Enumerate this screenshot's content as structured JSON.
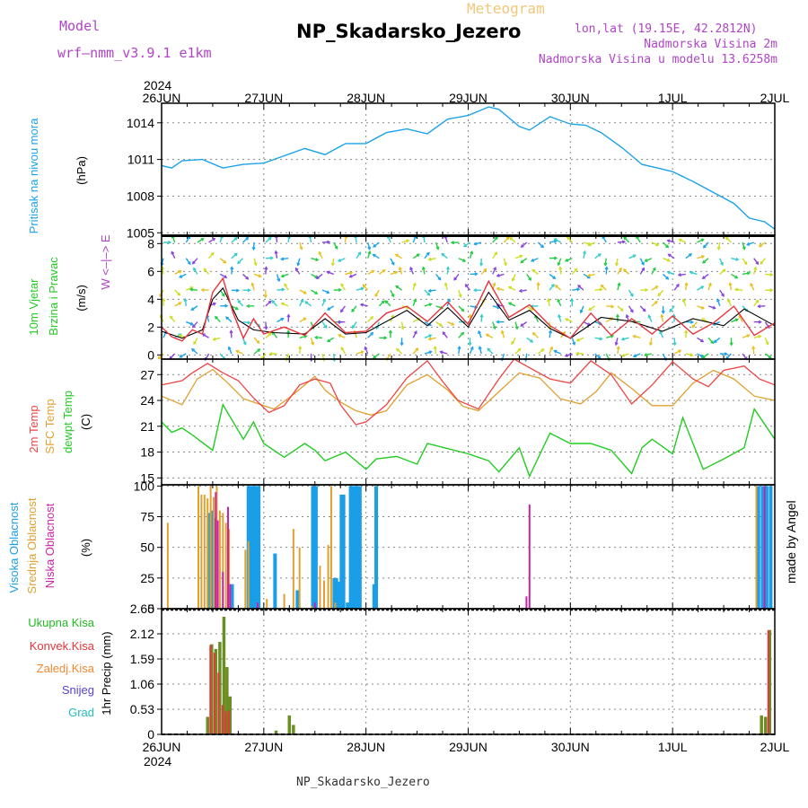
{
  "header": {
    "model_label": "Model",
    "model_name": "wrf–nmm_v3.9.1 e1km",
    "chart_kind": "Meteogram",
    "station": "NP_Skadarsko_Jezero",
    "coords": "lon,lat (19.15E, 42.2812N)",
    "elev": "Nadmorska Visina 2m",
    "elev_model": "Nadmorska Visina u modelu 13.6258m",
    "watermark": "made by Angel",
    "footer": "NP_Skadarsko_Jezero",
    "year": "2024"
  },
  "colors": {
    "pressure": "#1aa3e8",
    "wind_speed": "#e8343c",
    "gust": "#000000",
    "temp2m": "#ee4444",
    "sfc": "#e0a030",
    "dew": "#22cc22",
    "cloud_high": "#1a9ee8",
    "cloud_mid": "#e0a030",
    "cloud_low": "#cc22aa",
    "precip_total": "#6b8e23",
    "precip_conv": "#e8343c"
  },
  "chart_data": [
    {
      "type": "line",
      "name": "pressure",
      "ylabel": "(hPa)",
      "side_labels": [
        "Pritisak na nivou mora"
      ],
      "yticks": [
        1005,
        1008,
        1011,
        1014
      ],
      "ylim": [
        1004.8,
        1015.6
      ],
      "x_days": [
        0,
        0.1,
        0.2,
        0.4,
        0.6,
        0.8,
        1.0,
        1.2,
        1.4,
        1.6,
        1.8,
        2.0,
        2.2,
        2.4,
        2.6,
        2.8,
        3.0,
        3.2,
        3.3,
        3.5,
        3.6,
        3.8,
        4.0,
        4.15,
        4.3,
        4.5,
        4.7,
        4.85,
        5.0,
        5.2,
        5.4,
        5.6,
        5.75,
        5.9,
        6.0
      ],
      "values": [
        1010.5,
        1010.3,
        1010.9,
        1011.0,
        1010.3,
        1010.6,
        1010.7,
        1011.3,
        1011.9,
        1011.4,
        1012.3,
        1012.3,
        1013.2,
        1013.5,
        1013.1,
        1014.3,
        1014.6,
        1015.3,
        1015.1,
        1013.7,
        1013.4,
        1014.5,
        1013.9,
        1013.8,
        1013.2,
        1012.0,
        1010.6,
        1010.3,
        1010.0,
        1009.2,
        1008.3,
        1007.4,
        1006.2,
        1005.9,
        1005.3
      ]
    },
    {
      "type": "line",
      "name": "wind",
      "ylabel": "(m/s)",
      "side_labels": [
        "10m Vjetar",
        "Brzina i Pravac"
      ],
      "compass": "W  <–|–>  E",
      "yticks": [
        0,
        2,
        4,
        6,
        8
      ],
      "ylim": [
        -0.3,
        8.6
      ],
      "series": [
        {
          "name": "10m Vjetar",
          "x_days": [
            0,
            0.1,
            0.2,
            0.3,
            0.4,
            0.5,
            0.6,
            0.7,
            0.8,
            0.9,
            1.0,
            1.2,
            1.4,
            1.6,
            1.8,
            2.0,
            2.2,
            2.4,
            2.6,
            2.8,
            3.0,
            3.2,
            3.4,
            3.6,
            3.8,
            4.0,
            4.2,
            4.4,
            4.6,
            4.8,
            5.0,
            5.2,
            5.4,
            5.6,
            5.8,
            6.0
          ],
          "values": [
            2.0,
            1.3,
            1.0,
            1.8,
            1.5,
            4.5,
            5.5,
            3.0,
            1.2,
            2.6,
            1.5,
            2.0,
            1.4,
            3.0,
            1.6,
            1.7,
            3.0,
            3.5,
            2.4,
            3.8,
            2.2,
            5.3,
            2.7,
            3.6,
            2.1,
            1.2,
            3.0,
            1.4,
            2.6,
            1.5,
            2.8,
            1.5,
            2.3,
            3.5,
            1.4,
            2.3
          ]
        },
        {
          "name": "gust",
          "x_days": [
            0,
            0.2,
            0.4,
            0.5,
            0.6,
            0.75,
            0.9,
            1.1,
            1.4,
            1.6,
            1.8,
            2.0,
            2.4,
            2.6,
            2.8,
            3.0,
            3.2,
            3.4,
            3.6,
            3.8,
            4.0,
            4.3,
            4.6,
            4.9,
            5.2,
            5.5,
            5.7,
            6.0
          ],
          "values": [
            1.7,
            1.2,
            1.8,
            4.0,
            4.8,
            2.5,
            1.8,
            1.6,
            1.5,
            2.6,
            1.5,
            1.6,
            3.2,
            2.1,
            3.4,
            2.0,
            4.5,
            2.5,
            3.2,
            1.9,
            1.2,
            2.7,
            2.4,
            1.7,
            2.6,
            2.1,
            3.3,
            2.1
          ]
        }
      ]
    },
    {
      "type": "line",
      "name": "temperature",
      "ylabel": "(C)",
      "side_labels": [
        "2m Temp",
        "SFC Temp",
        "dewpt Temp"
      ],
      "yticks": [
        15,
        18,
        21,
        24,
        27
      ],
      "ylim": [
        14.2,
        28.8
      ],
      "series": [
        {
          "name": "2m Temp",
          "x_days": [
            0,
            0.2,
            0.3,
            0.45,
            0.6,
            0.75,
            0.9,
            1.05,
            1.2,
            1.35,
            1.5,
            1.65,
            1.75,
            1.9,
            2.0,
            2.2,
            2.4,
            2.6,
            2.75,
            2.9,
            3.1,
            3.3,
            3.45,
            3.6,
            3.8,
            4.0,
            4.2,
            4.4,
            4.6,
            4.8,
            5.0,
            5.2,
            5.35,
            5.5,
            5.7,
            5.85,
            6.0
          ],
          "values": [
            25.8,
            26.3,
            27.2,
            28.3,
            27.2,
            26.3,
            24.3,
            22.6,
            23.4,
            25.8,
            26.5,
            26.0,
            23.5,
            21.2,
            21.5,
            23.5,
            26.6,
            28.6,
            26.2,
            24.0,
            23.0,
            26.5,
            28.8,
            27.8,
            26.5,
            26.0,
            28.6,
            27.0,
            23.6,
            25.8,
            28.5,
            26.5,
            25.6,
            27.5,
            28.0,
            26.5,
            25.8
          ]
        },
        {
          "name": "SFC Temp",
          "x_days": [
            0,
            0.2,
            0.35,
            0.5,
            0.65,
            0.8,
            0.95,
            1.1,
            1.3,
            1.5,
            1.6,
            1.75,
            1.9,
            2.05,
            2.2,
            2.4,
            2.6,
            2.8,
            2.95,
            3.1,
            3.3,
            3.5,
            3.7,
            3.9,
            4.1,
            4.25,
            4.4,
            4.6,
            4.8,
            5.0,
            5.2,
            5.4,
            5.6,
            5.8,
            6.0
          ],
          "values": [
            24.5,
            23.5,
            26.5,
            27.6,
            26.0,
            24.2,
            23.6,
            23.0,
            24.8,
            26.8,
            25.2,
            23.8,
            22.8,
            22.3,
            22.8,
            25.8,
            27.0,
            25.2,
            23.3,
            22.8,
            25.0,
            27.2,
            26.6,
            24.2,
            23.6,
            25.0,
            27.2,
            25.4,
            23.4,
            23.4,
            26.0,
            27.5,
            26.5,
            24.5,
            24.0
          ]
        },
        {
          "name": "dewpt Temp",
          "x_days": [
            0,
            0.1,
            0.2,
            0.3,
            0.5,
            0.6,
            0.8,
            0.9,
            1.0,
            1.2,
            1.4,
            1.5,
            1.6,
            1.8,
            2.0,
            2.1,
            2.3,
            2.5,
            2.6,
            2.8,
            3.0,
            3.2,
            3.3,
            3.5,
            3.6,
            3.8,
            4.0,
            4.2,
            4.4,
            4.6,
            4.7,
            4.8,
            5.0,
            5.1,
            5.3,
            5.5,
            5.7,
            5.8,
            6.0
          ],
          "values": [
            21.5,
            20.3,
            20.8,
            20.0,
            18.2,
            23.5,
            19.5,
            21.5,
            19.0,
            17.4,
            19.0,
            18.2,
            17.0,
            18.0,
            16.0,
            17.2,
            17.5,
            16.6,
            19.0,
            18.4,
            17.8,
            17.0,
            15.7,
            18.5,
            15.2,
            20.2,
            19.0,
            19.0,
            18.2,
            15.5,
            18.5,
            19.5,
            17.8,
            22.0,
            16.0,
            17.2,
            18.5,
            23.0,
            19.5
          ]
        }
      ]
    },
    {
      "type": "bar",
      "name": "cloud",
      "ylabel": "(%)",
      "side_labels": [
        "Visoka Oblacnost",
        "Srednja Oblacnost",
        "Niska Oblacnost"
      ],
      "yticks": [
        0,
        25,
        50,
        75,
        100
      ],
      "ylim": [
        0,
        101
      ],
      "series": [
        {
          "name": "Visoka Oblacnost",
          "x_days": [
            0.46,
            0.49,
            0.52,
            0.69,
            0.85,
            0.87,
            0.89,
            0.91,
            0.93,
            0.95,
            1.11,
            1.33,
            1.48,
            1.51,
            1.69,
            1.71,
            1.73,
            1.76,
            1.78,
            1.82,
            1.85,
            1.88,
            1.91,
            1.94,
            2.08,
            2.1,
            5.84,
            5.88,
            5.92,
            5.96
          ],
          "values": [
            78,
            80,
            74,
            20,
            100,
            100,
            100,
            100,
            100,
            100,
            45,
            15,
            100,
            100,
            25,
            25,
            22,
            93,
            93,
            5,
            100,
            100,
            100,
            100,
            20,
            100,
            100,
            100,
            100,
            100
          ]
        },
        {
          "name": "Srednja Oblacnost",
          "x_days": [
            0.06,
            0.36,
            0.39,
            0.42,
            0.45,
            0.48,
            0.51,
            0.54,
            0.57,
            0.6,
            0.63,
            0.66,
            0.82,
            0.85,
            1.03,
            1.2,
            1.29,
            1.35,
            1.47,
            1.55,
            1.59,
            1.63,
            1.66,
            1.7,
            5.82
          ],
          "values": [
            70,
            100,
            93,
            93,
            90,
            100,
            91,
            100,
            80,
            78,
            70,
            65,
            48,
            55,
            8,
            12,
            65,
            50,
            2,
            35,
            23,
            52,
            100,
            5,
            100
          ]
        },
        {
          "name": "Niska Oblacnost",
          "x_days": [
            0.53,
            0.55,
            0.6,
            0.65,
            0.67,
            0.94,
            1.5,
            3.57,
            3.6,
            5.9
          ],
          "values": [
            95,
            72,
            30,
            83,
            20,
            5,
            5,
            10,
            85,
            100
          ]
        }
      ]
    },
    {
      "type": "bar",
      "name": "precip",
      "ylabel": "1hr Precip (mm)",
      "side_labels": [
        "Ukupna Kisa",
        "Konvek.Kisa",
        "Zaledj.Kisa",
        "Snijeg",
        "Grad"
      ],
      "yticks": [
        0,
        0.53,
        1.06,
        1.59,
        2.12,
        2.65
      ],
      "ylim": [
        0,
        2.65
      ],
      "series": [
        {
          "name": "Ukupna Kisa",
          "x_days": [
            0.45,
            0.49,
            0.53,
            0.57,
            0.61,
            0.64,
            0.67,
            1.12,
            1.25,
            1.29,
            5.87,
            5.91,
            5.95
          ],
          "values": [
            0.37,
            1.9,
            1.8,
            1.95,
            2.48,
            1.42,
            0.8,
            0.08,
            0.4,
            0.2,
            0.4,
            0.37,
            2.2
          ]
        },
        {
          "name": "Konvek.Kisa",
          "x_days": [
            0.49,
            0.53,
            0.57,
            0.61,
            0.64,
            0.67,
            5.95
          ],
          "values": [
            1.88,
            1.72,
            1.3,
            0.62,
            0.48,
            0.5,
            2.2
          ]
        }
      ]
    }
  ],
  "x_axis": {
    "days": 6,
    "top_labels": [
      "26JUN",
      "27JUN",
      "28JUN",
      "29JUN",
      "30JUN",
      "1JUL",
      "2JUL"
    ],
    "bottom_labels": [
      "26JUN",
      "27JUN",
      "28JUN",
      "29JUN",
      "30JUN",
      "1JUL",
      "2JUL"
    ]
  }
}
